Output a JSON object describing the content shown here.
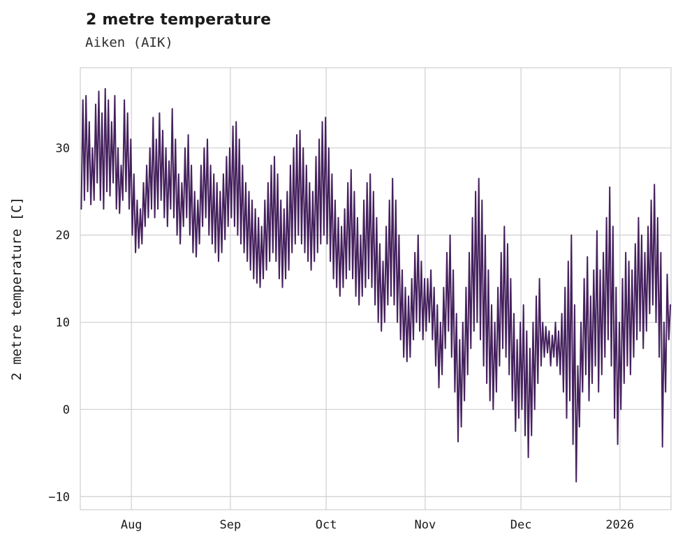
{
  "header": {
    "title": "2 metre temperature",
    "subtitle": "Aiken (AIK)"
  },
  "chart_data": {
    "type": "line",
    "title": "2 metre temperature",
    "subtitle": "Aiken (AIK)",
    "xlabel": "",
    "ylabel": "2 metre temperature [C]",
    "series_name": "2 metre temperature",
    "line_color": "#45215d",
    "grid_color": "#d3d3d3",
    "text_color": "#1a1a1a",
    "ylim": [
      -11.5,
      39.2
    ],
    "yticks": [
      -10,
      0,
      10,
      20,
      30
    ],
    "x_start_day": 0,
    "x_end_day": 185,
    "xticks": [
      {
        "day": 16,
        "label": "Aug"
      },
      {
        "day": 47,
        "label": "Sep"
      },
      {
        "day": 77,
        "label": "Oct"
      },
      {
        "day": 108,
        "label": "Nov"
      },
      {
        "day": 138,
        "label": "Dec"
      },
      {
        "day": 169,
        "label": "2026"
      }
    ],
    "grid": true,
    "legend": "none",
    "daily_min_max": [
      [
        23,
        35.5
      ],
      [
        24,
        36
      ],
      [
        25,
        33
      ],
      [
        23.5,
        30
      ],
      [
        24,
        35
      ],
      [
        26,
        36.5
      ],
      [
        24,
        34
      ],
      [
        23,
        36.8
      ],
      [
        25,
        35.5
      ],
      [
        24.5,
        33
      ],
      [
        26,
        36
      ],
      [
        23,
        30
      ],
      [
        22.5,
        28
      ],
      [
        24,
        35.5
      ],
      [
        25,
        34
      ],
      [
        23,
        31
      ],
      [
        20,
        27
      ],
      [
        18,
        24
      ],
      [
        18.5,
        23
      ],
      [
        19,
        26
      ],
      [
        21,
        28
      ],
      [
        22,
        30
      ],
      [
        23,
        33.5
      ],
      [
        22,
        31
      ],
      [
        23,
        34
      ],
      [
        24,
        32
      ],
      [
        22,
        30
      ],
      [
        21,
        28.5
      ],
      [
        23,
        34.5
      ],
      [
        22,
        31
      ],
      [
        20,
        27
      ],
      [
        19,
        26
      ],
      [
        21,
        30
      ],
      [
        22,
        31.5
      ],
      [
        20,
        28
      ],
      [
        18,
        25
      ],
      [
        17.5,
        24
      ],
      [
        19,
        28
      ],
      [
        21,
        30
      ],
      [
        22,
        31
      ],
      [
        20,
        28
      ],
      [
        19,
        27
      ],
      [
        18,
        26
      ],
      [
        17,
        25
      ],
      [
        18,
        27
      ],
      [
        19.5,
        29
      ],
      [
        21,
        30
      ],
      [
        22,
        32.5
      ],
      [
        21,
        33
      ],
      [
        20,
        31
      ],
      [
        19,
        28
      ],
      [
        18,
        26
      ],
      [
        17,
        25
      ],
      [
        16,
        24
      ],
      [
        15,
        23
      ],
      [
        14.5,
        22
      ],
      [
        14,
        21
      ],
      [
        15,
        24
      ],
      [
        16,
        26
      ],
      [
        17,
        28
      ],
      [
        18,
        29
      ],
      [
        17,
        27
      ],
      [
        15,
        24
      ],
      [
        14,
        23
      ],
      [
        15,
        25
      ],
      [
        16,
        28
      ],
      [
        18,
        30
      ],
      [
        19,
        31.5
      ],
      [
        20,
        32
      ],
      [
        19,
        30
      ],
      [
        18,
        28
      ],
      [
        17,
        26
      ],
      [
        16,
        25
      ],
      [
        17,
        29
      ],
      [
        18,
        31
      ],
      [
        19,
        33
      ],
      [
        20,
        33.5
      ],
      [
        19,
        30
      ],
      [
        17,
        27
      ],
      [
        15,
        24
      ],
      [
        14,
        22
      ],
      [
        13,
        21
      ],
      [
        14,
        23
      ],
      [
        15,
        26
      ],
      [
        16,
        27.5
      ],
      [
        15,
        25
      ],
      [
        13,
        22
      ],
      [
        12,
        20
      ],
      [
        13,
        24
      ],
      [
        14,
        26
      ],
      [
        15,
        27
      ],
      [
        14,
        25
      ],
      [
        12,
        22
      ],
      [
        10,
        19
      ],
      [
        9,
        17
      ],
      [
        10,
        21
      ],
      [
        12,
        24
      ],
      [
        13,
        26.5
      ],
      [
        12,
        24
      ],
      [
        10,
        20
      ],
      [
        8,
        16
      ],
      [
        6,
        14
      ],
      [
        5.5,
        13
      ],
      [
        6,
        15
      ],
      [
        8,
        18
      ],
      [
        10,
        20
      ],
      [
        9,
        17
      ],
      [
        8,
        15
      ],
      [
        9,
        15
      ],
      [
        10,
        16
      ],
      [
        8,
        14
      ],
      [
        5,
        12
      ],
      [
        2.5,
        10
      ],
      [
        4,
        14
      ],
      [
        7,
        18
      ],
      [
        9,
        20
      ],
      [
        6,
        16
      ],
      [
        2,
        11
      ],
      [
        -3.7,
        8
      ],
      [
        -2,
        10
      ],
      [
        1,
        14
      ],
      [
        4,
        18
      ],
      [
        7,
        22
      ],
      [
        9,
        25
      ],
      [
        10,
        26.5
      ],
      [
        8,
        24
      ],
      [
        5,
        20
      ],
      [
        3,
        16
      ],
      [
        1,
        12
      ],
      [
        0,
        10
      ],
      [
        2,
        14
      ],
      [
        5,
        18
      ],
      [
        7,
        21
      ],
      [
        6,
        19
      ],
      [
        4,
        15
      ],
      [
        1,
        11
      ],
      [
        -2.5,
        8
      ],
      [
        -1,
        10
      ],
      [
        0,
        12
      ],
      [
        -3,
        9
      ],
      [
        -5.5,
        7
      ],
      [
        -3,
        10
      ],
      [
        0,
        13
      ],
      [
        3,
        15
      ],
      [
        5,
        10
      ],
      [
        6,
        9.5
      ],
      [
        6.5,
        9
      ],
      [
        5,
        8.5
      ],
      [
        6,
        10
      ],
      [
        5,
        9
      ],
      [
        4,
        11
      ],
      [
        2,
        14
      ],
      [
        -1,
        17
      ],
      [
        1,
        20
      ],
      [
        -4,
        12
      ],
      [
        -8.3,
        5
      ],
      [
        -2,
        10
      ],
      [
        2,
        15
      ],
      [
        4,
        17.5
      ],
      [
        1,
        13
      ],
      [
        3,
        16
      ],
      [
        5,
        20.5
      ],
      [
        2,
        16
      ],
      [
        4,
        18
      ],
      [
        6,
        22
      ],
      [
        8,
        25.5
      ],
      [
        5,
        21
      ],
      [
        -1,
        14
      ],
      [
        -4,
        10
      ],
      [
        0,
        15
      ],
      [
        3,
        18
      ],
      [
        5,
        17
      ],
      [
        4,
        16
      ],
      [
        6,
        19
      ],
      [
        8,
        22
      ],
      [
        9,
        20
      ],
      [
        7,
        18
      ],
      [
        9,
        21
      ],
      [
        11,
        24
      ],
      [
        12,
        25.8
      ],
      [
        10,
        22
      ],
      [
        6,
        18
      ],
      [
        -4.3,
        10
      ],
      [
        2,
        15.5
      ],
      [
        8,
        12
      ]
    ]
  }
}
